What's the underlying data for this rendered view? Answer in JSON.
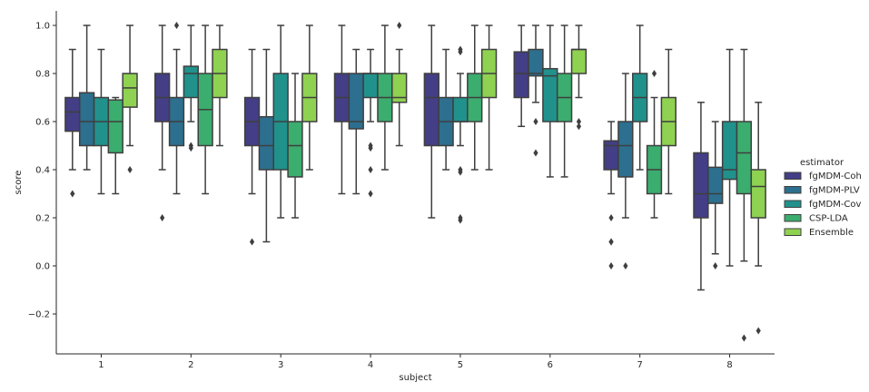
{
  "chart_data": {
    "type": "boxplot",
    "xlabel": "subject",
    "ylabel": "score",
    "ylim": [
      -0.36,
      1.06
    ],
    "yticks": [
      -0.2,
      0.0,
      0.2,
      0.4,
      0.6,
      0.8,
      1.0
    ],
    "ytick_labels": [
      "−0.2",
      "0.0",
      "0.2",
      "0.4",
      "0.6",
      "0.8",
      "1.0"
    ],
    "categories": [
      "1",
      "2",
      "3",
      "4",
      "5",
      "6",
      "7",
      "8"
    ],
    "legend": {
      "title": "estimator",
      "position": "right"
    },
    "series": [
      {
        "name": "fgMDM-Coh",
        "color": "#433e85",
        "boxes": [
          {
            "whislo": 0.4,
            "q1": 0.56,
            "med": 0.64,
            "q3": 0.7,
            "whishi": 0.9,
            "fliers": [
              0.3
            ]
          },
          {
            "whislo": 0.4,
            "q1": 0.6,
            "med": 0.7,
            "q3": 0.8,
            "whishi": 1.0,
            "fliers": [
              0.2
            ]
          },
          {
            "whislo": 0.3,
            "q1": 0.5,
            "med": 0.6,
            "q3": 0.7,
            "whishi": 0.9,
            "fliers": [
              0.1
            ]
          },
          {
            "whislo": 0.3,
            "q1": 0.6,
            "med": 0.7,
            "q3": 0.8,
            "whishi": 1.0,
            "fliers": []
          },
          {
            "whislo": 0.2,
            "q1": 0.5,
            "med": 0.7,
            "q3": 0.8,
            "whishi": 1.0,
            "fliers": []
          },
          {
            "whislo": 0.58,
            "q1": 0.7,
            "med": 0.8,
            "q3": 0.89,
            "whishi": 1.0,
            "fliers": []
          },
          {
            "whislo": 0.3,
            "q1": 0.4,
            "med": 0.5,
            "q3": 0.52,
            "whishi": 0.6,
            "fliers": [
              0.2,
              0.1,
              0.1,
              0.0
            ]
          },
          {
            "whislo": -0.1,
            "q1": 0.2,
            "med": 0.3,
            "q3": 0.47,
            "whishi": 0.68,
            "fliers": []
          }
        ]
      },
      {
        "name": "fgMDM-PLV",
        "color": "#2c6f8e",
        "boxes": [
          {
            "whislo": 0.4,
            "q1": 0.5,
            "med": 0.6,
            "q3": 0.72,
            "whishi": 1.0,
            "fliers": []
          },
          {
            "whislo": 0.3,
            "q1": 0.5,
            "med": 0.6,
            "q3": 0.7,
            "whishi": 0.9,
            "fliers": [
              1.0
            ]
          },
          {
            "whislo": 0.1,
            "q1": 0.4,
            "med": 0.5,
            "q3": 0.62,
            "whishi": 0.9,
            "fliers": []
          },
          {
            "whislo": 0.3,
            "q1": 0.57,
            "med": 0.6,
            "q3": 0.8,
            "whishi": 0.9,
            "fliers": []
          },
          {
            "whislo": 0.4,
            "q1": 0.5,
            "med": 0.6,
            "q3": 0.7,
            "whishi": 0.9,
            "fliers": []
          },
          {
            "whislo": 0.68,
            "q1": 0.79,
            "med": 0.8,
            "q3": 0.9,
            "whishi": 1.0,
            "fliers": [
              0.6,
              0.47
            ]
          },
          {
            "whislo": 0.2,
            "q1": 0.37,
            "med": 0.5,
            "q3": 0.6,
            "whishi": 0.8,
            "fliers": [
              0.0
            ]
          },
          {
            "whislo": 0.05,
            "q1": 0.26,
            "med": 0.3,
            "q3": 0.41,
            "whishi": 0.6,
            "fliers": [
              0.0
            ]
          }
        ]
      },
      {
        "name": "fgMDM-Cov",
        "color": "#21918c",
        "boxes": [
          {
            "whislo": 0.3,
            "q1": 0.5,
            "med": 0.6,
            "q3": 0.7,
            "whishi": 0.9,
            "fliers": []
          },
          {
            "whislo": 0.6,
            "q1": 0.7,
            "med": 0.8,
            "q3": 0.83,
            "whishi": 1.0,
            "fliers": [
              0.5,
              0.49
            ]
          },
          {
            "whislo": 0.2,
            "q1": 0.4,
            "med": 0.6,
            "q3": 0.8,
            "whishi": 1.0,
            "fliers": []
          },
          {
            "whislo": 0.6,
            "q1": 0.7,
            "med": 0.8,
            "q3": 0.8,
            "whishi": 0.9,
            "fliers": [
              0.5,
              0.49,
              0.4,
              0.3
            ]
          },
          {
            "whislo": 0.5,
            "q1": 0.6,
            "med": 0.6,
            "q3": 0.7,
            "whishi": 0.8,
            "fliers": [
              0.9,
              0.89,
              0.4,
              0.39,
              0.2,
              0.19
            ]
          },
          {
            "whislo": 0.37,
            "q1": 0.6,
            "med": 0.79,
            "q3": 0.82,
            "whishi": 1.0,
            "fliers": []
          },
          {
            "whislo": 0.4,
            "q1": 0.6,
            "med": 0.7,
            "q3": 0.8,
            "whishi": 1.0,
            "fliers": []
          },
          {
            "whislo": 0.0,
            "q1": 0.36,
            "med": 0.4,
            "q3": 0.6,
            "whishi": 0.9,
            "fliers": []
          }
        ]
      },
      {
        "name": "CSP-LDA",
        "color": "#3bad6e",
        "boxes": [
          {
            "whislo": 0.3,
            "q1": 0.47,
            "med": 0.6,
            "q3": 0.69,
            "whishi": 0.7,
            "fliers": []
          },
          {
            "whislo": 0.3,
            "q1": 0.5,
            "med": 0.65,
            "q3": 0.8,
            "whishi": 1.0,
            "fliers": []
          },
          {
            "whislo": 0.2,
            "q1": 0.37,
            "med": 0.5,
            "q3": 0.6,
            "whishi": 0.8,
            "fliers": []
          },
          {
            "whislo": 0.4,
            "q1": 0.6,
            "med": 0.7,
            "q3": 0.8,
            "whishi": 1.0,
            "fliers": []
          },
          {
            "whislo": 0.4,
            "q1": 0.6,
            "med": 0.7,
            "q3": 0.8,
            "whishi": 1.0,
            "fliers": []
          },
          {
            "whislo": 0.37,
            "q1": 0.6,
            "med": 0.7,
            "q3": 0.8,
            "whishi": 1.0,
            "fliers": []
          },
          {
            "whislo": 0.2,
            "q1": 0.3,
            "med": 0.4,
            "q3": 0.5,
            "whishi": 0.7,
            "fliers": [
              0.8
            ]
          },
          {
            "whislo": 0.02,
            "q1": 0.3,
            "med": 0.47,
            "q3": 0.6,
            "whishi": 0.9,
            "fliers": [
              -0.3
            ]
          }
        ]
      },
      {
        "name": "Ensemble",
        "color": "#8fd151",
        "boxes": [
          {
            "whislo": 0.5,
            "q1": 0.66,
            "med": 0.74,
            "q3": 0.8,
            "whishi": 1.0,
            "fliers": [
              0.4
            ]
          },
          {
            "whislo": 0.5,
            "q1": 0.7,
            "med": 0.8,
            "q3": 0.9,
            "whishi": 1.0,
            "fliers": []
          },
          {
            "whislo": 0.4,
            "q1": 0.6,
            "med": 0.7,
            "q3": 0.8,
            "whishi": 1.0,
            "fliers": []
          },
          {
            "whislo": 0.5,
            "q1": 0.68,
            "med": 0.7,
            "q3": 0.8,
            "whishi": 0.9,
            "fliers": [
              1.0
            ]
          },
          {
            "whislo": 0.4,
            "q1": 0.7,
            "med": 0.8,
            "q3": 0.9,
            "whishi": 1.0,
            "fliers": []
          },
          {
            "whislo": 0.7,
            "q1": 0.8,
            "med": 0.9,
            "q3": 0.9,
            "whishi": 1.0,
            "fliers": [
              0.6,
              0.58
            ]
          },
          {
            "whislo": 0.3,
            "q1": 0.5,
            "med": 0.6,
            "q3": 0.7,
            "whishi": 0.9,
            "fliers": []
          },
          {
            "whislo": 0.0,
            "q1": 0.2,
            "med": 0.33,
            "q3": 0.4,
            "whishi": 0.68,
            "fliers": [
              -0.27
            ]
          }
        ]
      }
    ]
  }
}
